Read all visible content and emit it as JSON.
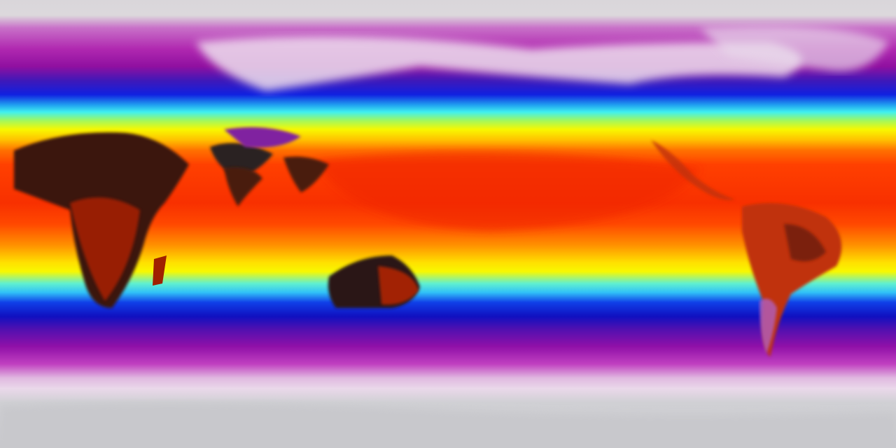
{
  "map": {
    "projection": "equirectangular",
    "colormap": [
      "#d9d6da",
      "#b028b0",
      "#1020e0",
      "#40f0f0",
      "#f8f800",
      "#ff4000",
      "#2a1a1a"
    ]
  }
}
